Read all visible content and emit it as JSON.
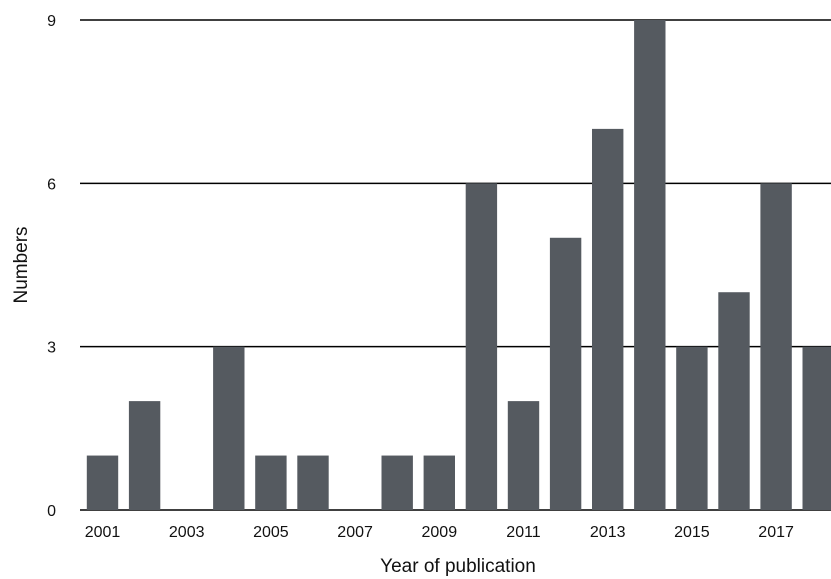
{
  "chart_data": {
    "type": "bar",
    "categories": [
      "2001",
      "2002",
      "2003",
      "2004",
      "2005",
      "2006",
      "2007",
      "2008",
      "2009",
      "2010",
      "2011",
      "2012",
      "2013",
      "2014",
      "2015",
      "2016",
      "2017",
      "2018"
    ],
    "values": [
      1,
      2,
      0,
      3,
      1,
      1,
      0,
      1,
      1,
      6,
      2,
      5,
      7,
      9,
      3,
      4,
      6,
      3
    ],
    "xlabel": "Year of publication",
    "ylabel": "Numbers",
    "ylim": [
      0,
      9
    ],
    "yticks": [
      "0",
      "3",
      "6",
      "9"
    ],
    "xtick_labels": [
      "2001",
      "",
      "2003",
      "",
      "2005",
      "",
      "2007",
      "",
      "2009",
      "",
      "2011",
      "",
      "2013",
      "",
      "2015",
      "",
      "2017",
      ""
    ],
    "grid": "horizontal",
    "bar_color": "#555a60",
    "grid_color": "#000000"
  }
}
